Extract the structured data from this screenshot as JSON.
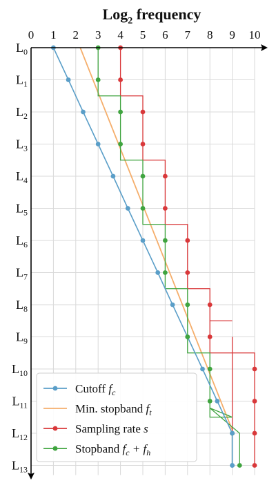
{
  "chart_data": {
    "type": "line",
    "title_main": "Log",
    "title_sub": "2",
    "title_rest": " frequency",
    "x_axis": {
      "range": [
        0,
        10
      ],
      "ticks": [
        "0",
        "1",
        "2",
        "3",
        "4",
        "5",
        "6",
        "7",
        "8",
        "9",
        "10"
      ],
      "position": "top"
    },
    "y_axis": {
      "categories": [
        "L",
        "L",
        "L",
        "L",
        "L",
        "L",
        "L",
        "L",
        "L",
        "L",
        "L",
        "L",
        "L",
        "L"
      ],
      "subscripts": [
        "0",
        "1",
        "2",
        "3",
        "4",
        "5",
        "6",
        "7",
        "8",
        "9",
        "10",
        "11",
        "12",
        "13"
      ],
      "inverted": true
    },
    "grid": true,
    "legend": {
      "placement": "bottom-left",
      "entries": [
        {
          "label": "Cutoff ",
          "math": "f",
          "sub": "c",
          "extra": ""
        },
        {
          "label": "Min. stopband ",
          "math": "f",
          "sub": "t",
          "extra": ""
        },
        {
          "label": "Sampling rate ",
          "math": "s",
          "sub": "",
          "extra": ""
        },
        {
          "label": "Stopband ",
          "math": "f",
          "sub": "c",
          "extra": " + f",
          "extra_sub": "h"
        }
      ]
    },
    "series": [
      {
        "key": "cutoff",
        "color": "#5a9ec8",
        "values": [
          1,
          1.67,
          2.33,
          3,
          3.67,
          4.33,
          5,
          5.67,
          6.33,
          7,
          7.67,
          8.33,
          9,
          9
        ]
      },
      {
        "key": "min_stopband",
        "color": "#f5ae6b",
        "start": [
          2.2,
          0
        ],
        "end": [
          9.0,
          11.9
        ]
      },
      {
        "key": "sampling_rate",
        "color": "#d9383a",
        "values": [
          4,
          4,
          5,
          5,
          6,
          6,
          7,
          7,
          8,
          8,
          9,
          9,
          9,
          9
        ],
        "ext_values": [
          4,
          4,
          5,
          5,
          6,
          6,
          7,
          7,
          8,
          8,
          10,
          10,
          10,
          10
        ]
      },
      {
        "key": "stopband",
        "color": "#3fa43f",
        "values": [
          3,
          3,
          4,
          4,
          5,
          5,
          6,
          6,
          7,
          7,
          8,
          8,
          9,
          9.33
        ]
      }
    ]
  }
}
